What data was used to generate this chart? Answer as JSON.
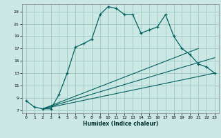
{
  "xlabel": "Humidex (Indice chaleur)",
  "bg_color": "#cce8e4",
  "grid_color": "#a0c8c4",
  "line_color": "#006060",
  "xlim": [
    -0.5,
    23.5
  ],
  "ylim": [
    6.5,
    24.2
  ],
  "xticks": [
    0,
    1,
    2,
    3,
    4,
    5,
    6,
    7,
    8,
    9,
    10,
    11,
    12,
    13,
    14,
    15,
    16,
    17,
    18,
    19,
    20,
    21,
    22,
    23
  ],
  "yticks": [
    7,
    9,
    11,
    13,
    15,
    17,
    19,
    21,
    23
  ],
  "main_x": [
    0,
    1,
    2,
    3,
    4,
    5,
    6,
    7,
    8,
    9,
    10,
    11,
    12,
    13,
    14,
    15,
    16,
    17,
    18,
    19,
    20,
    21,
    22,
    23
  ],
  "main_y": [
    8.5,
    7.5,
    7.2,
    7.2,
    9.5,
    13.0,
    17.2,
    17.8,
    18.5,
    22.5,
    23.8,
    23.5,
    22.5,
    22.5,
    19.5,
    20.0,
    20.5,
    22.5,
    19.0,
    17.0,
    16.0,
    14.5,
    14.0,
    13.0
  ],
  "line1_x": [
    2,
    23
  ],
  "line1_y": [
    7.2,
    13.0
  ],
  "line2_x": [
    2,
    23
  ],
  "line2_y": [
    7.2,
    15.5
  ],
  "line3_x": [
    2,
    21
  ],
  "line3_y": [
    7.2,
    17.0
  ]
}
